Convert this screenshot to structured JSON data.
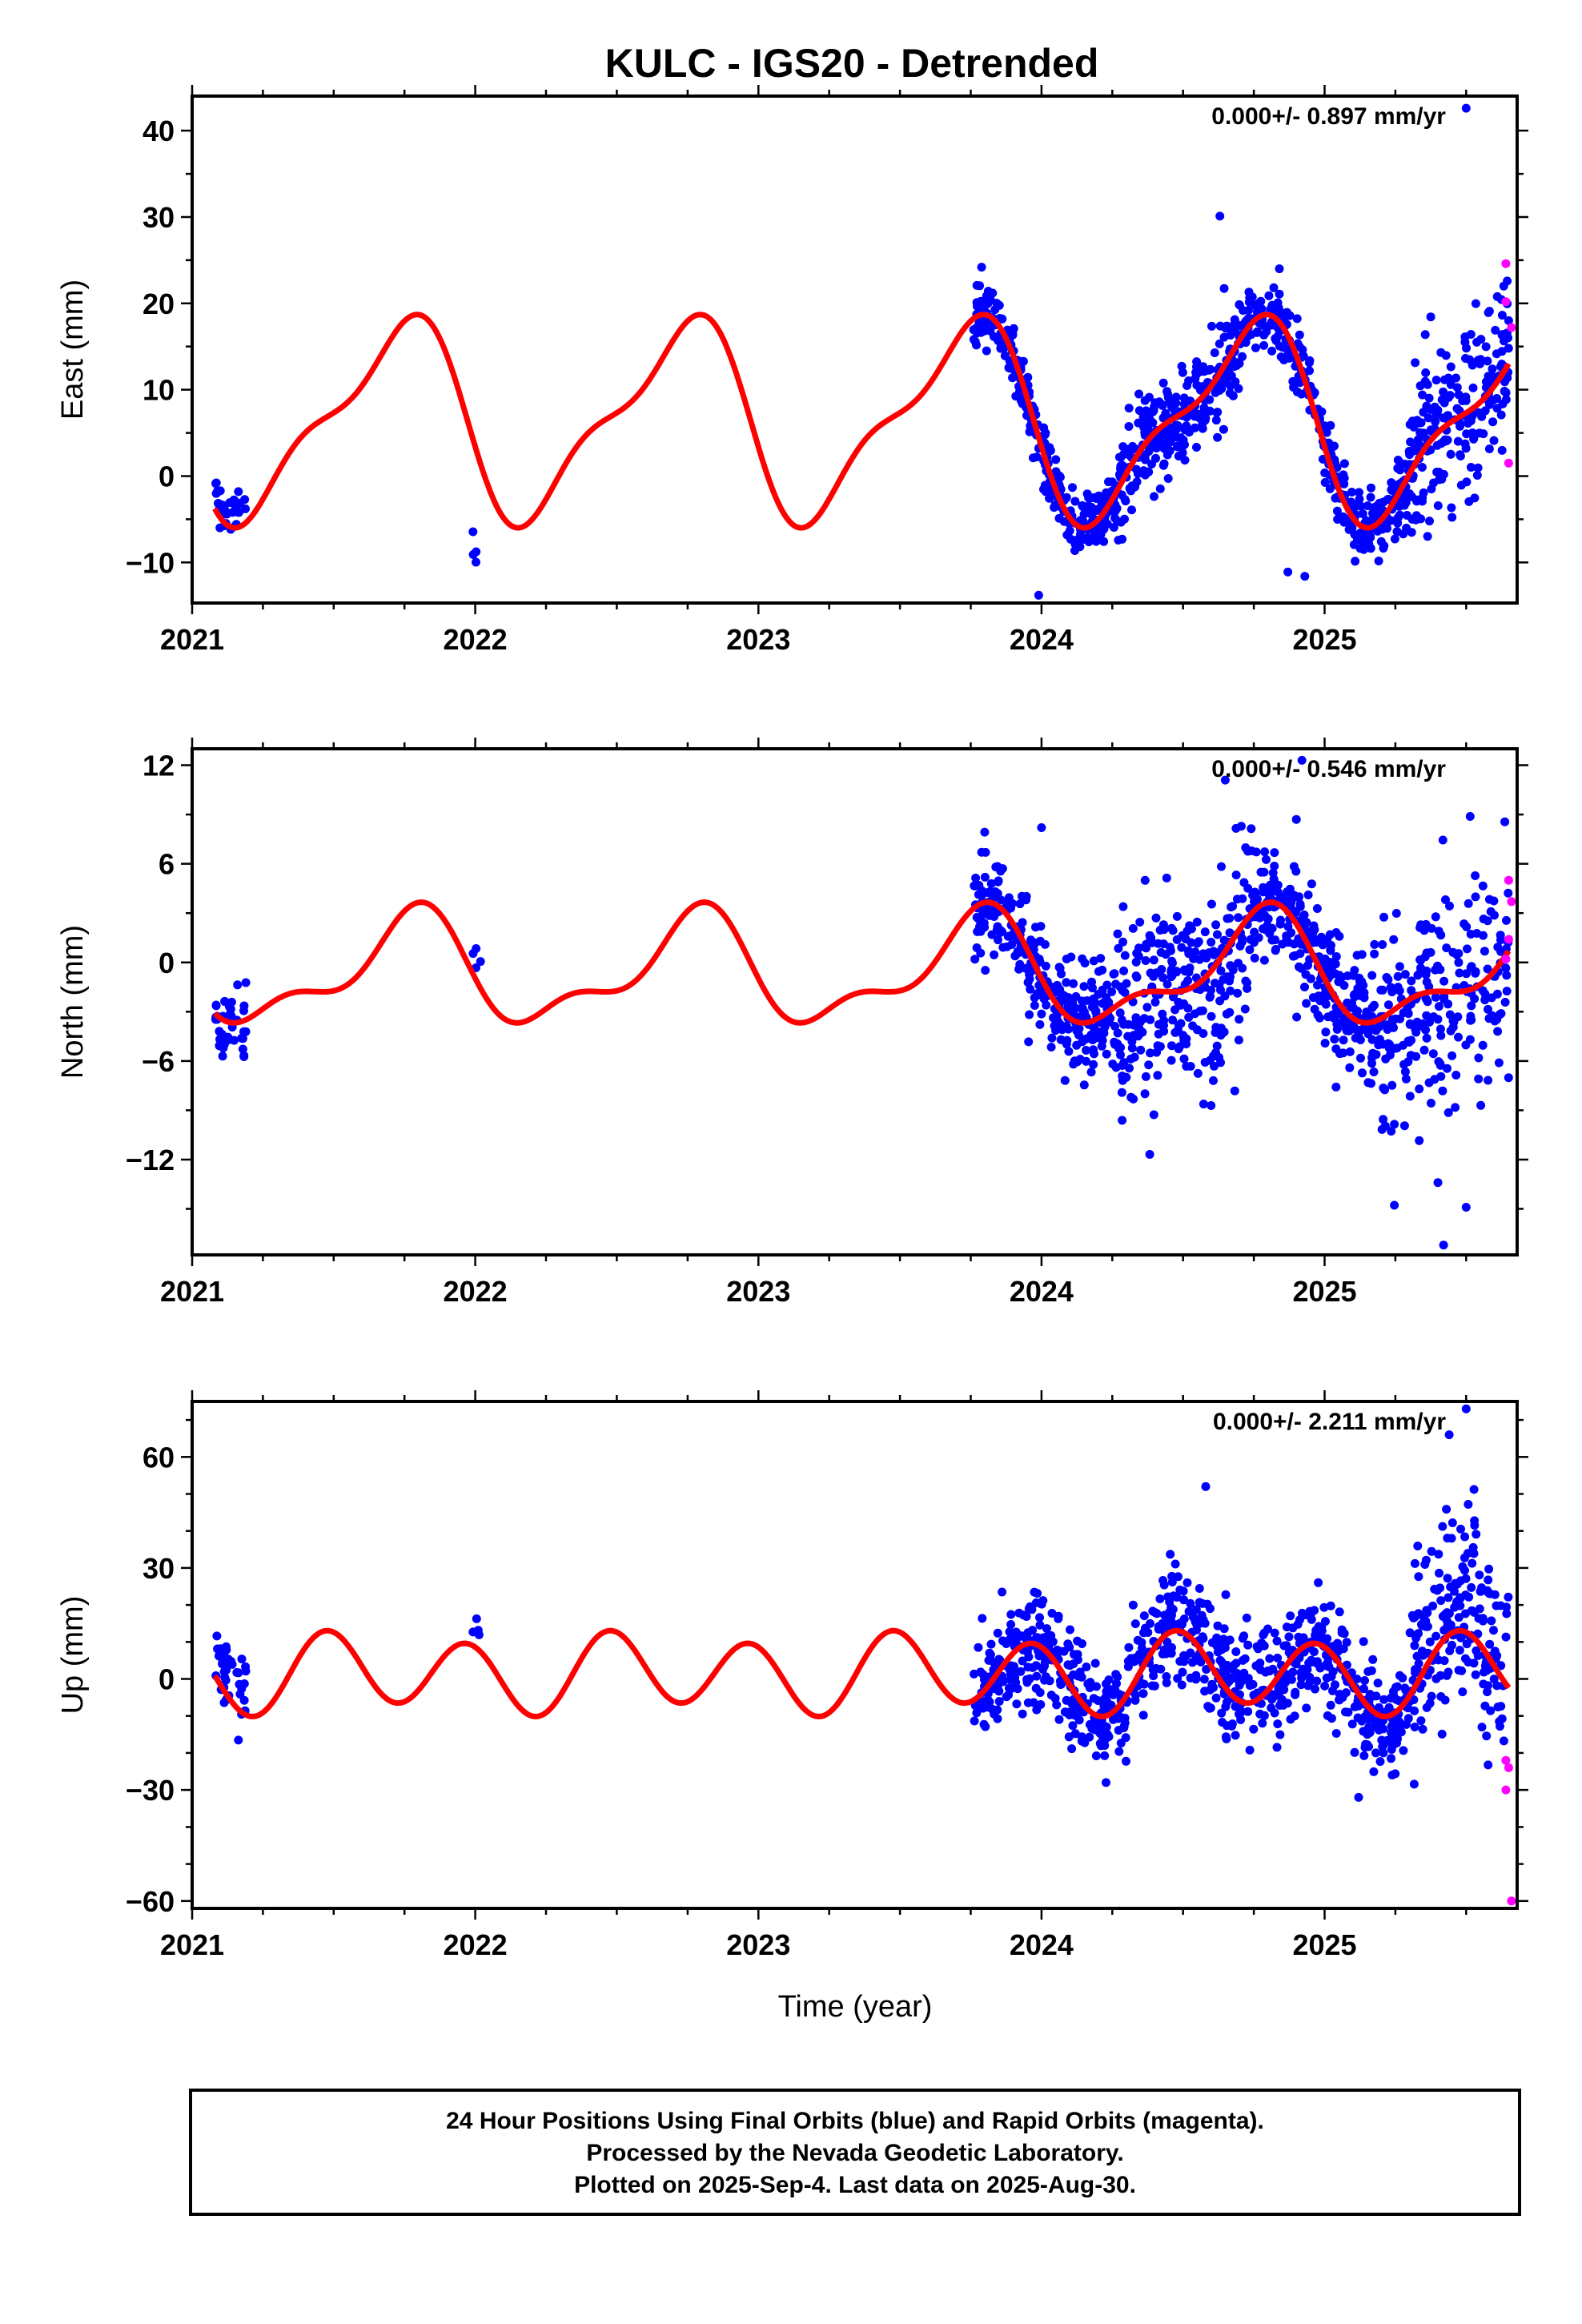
{
  "title": "KULC - IGS20 - Detrended",
  "footer": {
    "lines": [
      "24 Hour Positions Using Final Orbits (blue) and Rapid Orbits (magenta).",
      "Processed by the Nevada Geodetic Laboratory.",
      "Plotted on 2025-Sep-4. Last data on 2025-Aug-30."
    ]
  },
  "colors": {
    "final": "#0000ff",
    "rapid": "#ff00ff",
    "model": "#ff0000",
    "frame": "#000000"
  },
  "chart_data": [
    {
      "type": "scatter",
      "id": "east",
      "ylabel": "East (mm)",
      "xlabel": "",
      "rate_text": "0.000+/- 0.897 mm/yr",
      "xlim": [
        2021.0,
        2025.68
      ],
      "ylim": [
        -14.7,
        44.0
      ],
      "xticks": [
        2021,
        2022,
        2023,
        2024,
        2025
      ],
      "yticks": [
        -10,
        0,
        10,
        20,
        30,
        40
      ],
      "yticks_labels": [
        "−10",
        "0",
        "10",
        "20",
        "30",
        "40"
      ],
      "minor_step": 5,
      "model": {
        "mean": 6.5,
        "a1": 10.5,
        "a2": -3.7,
        "p1": -0.28,
        "p2": 0.1,
        "start": 2021.08,
        "end": 2025.65
      },
      "seed": 11,
      "clusters": [
        {
          "start": 2021.08,
          "end": 2021.19,
          "count": 40,
          "noise": 1.2,
          "offset": 1.8
        },
        {
          "start": 2021.99,
          "end": 2022.02,
          "count": 4,
          "noise": 1.0,
          "offset": -10.0,
          "absolute": true
        },
        {
          "start": 2023.76,
          "end": 2024.26,
          "count": 300,
          "noise": 1.8,
          "offset": 0
        },
        {
          "start": 2024.26,
          "end": 2024.7,
          "count": 260,
          "noise": 3.2,
          "offset": 0
        },
        {
          "start": 2024.7,
          "end": 2025.3,
          "count": 320,
          "noise": 2.0,
          "offset": 0
        },
        {
          "start": 2025.3,
          "end": 2025.65,
          "count": 200,
          "noise": 5.0,
          "offset": 1.5
        }
      ],
      "outliers": [
        [
          2024.63,
          30.1
        ],
        [
          2025.5,
          42.6
        ],
        [
          2023.99,
          -13.8
        ],
        [
          2024.87,
          -11.1
        ],
        [
          2024.93,
          -11.6
        ]
      ],
      "rapid": [
        [
          2025.64,
          24.6
        ],
        [
          2025.64,
          20.2
        ],
        [
          2025.66,
          17.2
        ],
        [
          2025.65,
          1.5
        ]
      ]
    },
    {
      "type": "scatter",
      "id": "north",
      "ylabel": "North (mm)",
      "xlabel": "",
      "rate_text": "0.000+/- 0.546 mm/yr",
      "xlim": [
        2021.0,
        2025.68
      ],
      "ylim": [
        -17.8,
        13.0
      ],
      "xticks": [
        2021,
        2022,
        2023,
        2024,
        2025
      ],
      "yticks": [
        -12,
        -6,
        0,
        6,
        12
      ],
      "yticks_labels": [
        "−12",
        "−6",
        "0",
        "6",
        "12"
      ],
      "minor_step": 3,
      "model": {
        "mean": -0.6,
        "a1": -3.0,
        "a2": -1.4,
        "p1": 0.27,
        "p2": 0.08,
        "start": 2021.08,
        "end": 2025.65
      },
      "seed": 23,
      "clusters": [
        {
          "start": 2021.08,
          "end": 2021.19,
          "count": 40,
          "noise": 1.0,
          "offset": 0
        },
        {
          "start": 2021.99,
          "end": 2022.02,
          "count": 4,
          "noise": 0.8,
          "offset": 0.5,
          "absolute": true
        },
        {
          "start": 2023.76,
          "end": 2024.26,
          "count": 300,
          "noise": 1.5,
          "offset": 0
        },
        {
          "start": 2024.26,
          "end": 2024.75,
          "count": 280,
          "noise": 3.2,
          "offset": -0.5
        },
        {
          "start": 2024.75,
          "end": 2025.2,
          "count": 280,
          "noise": 1.8,
          "offset": 0
        },
        {
          "start": 2025.2,
          "end": 2025.65,
          "count": 220,
          "noise": 3.5,
          "offset": -0.8
        }
      ],
      "outliers": [
        [
          2024.0,
          8.2
        ],
        [
          2024.9,
          8.7
        ],
        [
          2024.92,
          12.3
        ],
        [
          2025.42,
          -17.2
        ],
        [
          2025.5,
          -14.9
        ],
        [
          2025.4,
          -13.4
        ]
      ],
      "rapid": [
        [
          2025.65,
          5.0
        ],
        [
          2025.66,
          3.7
        ],
        [
          2025.65,
          1.4
        ],
        [
          2025.64,
          0.2
        ]
      ]
    },
    {
      "type": "scatter",
      "id": "up",
      "ylabel": "Up (mm)",
      "xlabel": "Time (year)",
      "rate_text": "0.000+/- 2.211 mm/yr",
      "xlim": [
        2021.0,
        2025.68
      ],
      "ylim": [
        -62.0,
        75.0
      ],
      "xticks": [
        2021,
        2022,
        2023,
        2024,
        2025
      ],
      "yticks": [
        -60,
        -30,
        0,
        30,
        60
      ],
      "yticks_labels": [
        "−60",
        "−30",
        "0",
        "30",
        "60"
      ],
      "minor_step": 10,
      "model": {
        "mean": 1.5,
        "a1": -2.5,
        "a2": 9.8,
        "p1": 0.1,
        "p2": -0.03,
        "start": 2021.08,
        "end": 2025.65
      },
      "seed": 37,
      "clusters": [
        {
          "start": 2021.08,
          "end": 2021.19,
          "count": 40,
          "noise": 6.0,
          "offset": 4.0
        },
        {
          "start": 2021.99,
          "end": 2022.02,
          "count": 4,
          "noise": 4.0,
          "offset": 11.0,
          "absolute": true
        },
        {
          "start": 2023.76,
          "end": 2024.3,
          "count": 300,
          "noise": 7.0,
          "offset": -1.0
        },
        {
          "start": 2024.3,
          "end": 2024.8,
          "count": 260,
          "noise": 8.0,
          "offset": 3.0
        },
        {
          "start": 2024.8,
          "end": 2025.3,
          "count": 280,
          "noise": 7.0,
          "offset": -2.0
        },
        {
          "start": 2025.3,
          "end": 2025.65,
          "count": 200,
          "noise": 12.0,
          "offset": 6.0
        }
      ],
      "outliers": [
        [
          2025.5,
          73.0
        ],
        [
          2025.44,
          66.0
        ],
        [
          2025.12,
          -32.0
        ],
        [
          2024.58,
          52.0
        ]
      ],
      "rapid": [
        [
          2025.64,
          -22.0
        ],
        [
          2025.65,
          -24.0
        ],
        [
          2025.64,
          -30.0
        ],
        [
          2025.66,
          -60.0
        ]
      ]
    }
  ]
}
